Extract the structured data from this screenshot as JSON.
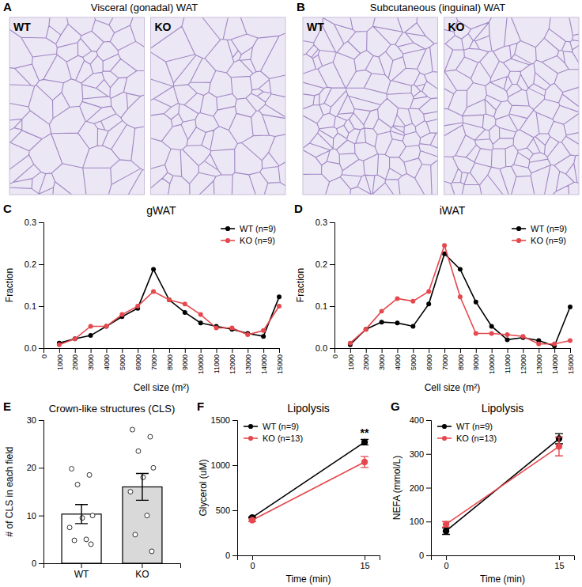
{
  "chart_data": [
    {
      "type": "image",
      "panel_label": "A",
      "title": "Visceral (gonadal) WAT",
      "annotations": [
        "WT",
        "KO"
      ]
    },
    {
      "type": "image",
      "panel_label": "B",
      "title": "Subcutaneous (inguinal) WAT",
      "annotations": [
        "WT",
        "KO"
      ]
    },
    {
      "type": "line",
      "panel_label": "C",
      "title": "gWAT",
      "xlabel": "Cell size (m²)",
      "ylabel": "Fraction",
      "x": [
        1000,
        2000,
        3000,
        4000,
        5000,
        6000,
        7000,
        8000,
        9000,
        10000,
        11000,
        12000,
        13000,
        14000,
        15000
      ],
      "xlim": [
        0,
        15000
      ],
      "xticks": [
        0,
        1000,
        2000,
        3000,
        4000,
        5000,
        6000,
        7000,
        8000,
        9000,
        10000,
        11000,
        12000,
        13000,
        14000,
        15000
      ],
      "ylim": [
        0,
        0.3
      ],
      "yticks": [
        {
          "value": 0,
          "label": "0.0"
        },
        {
          "value": 0.1,
          "label": "0.1"
        },
        {
          "value": 0.2,
          "label": "0.2"
        },
        {
          "value": 0.3,
          "label": "0.3"
        }
      ],
      "legend": "upper right",
      "series": [
        {
          "name": "WT (n=9)",
          "color": "#000000",
          "marker": "circle",
          "values": [
            0.012,
            0.022,
            0.03,
            0.052,
            0.075,
            0.095,
            0.188,
            0.115,
            0.085,
            0.06,
            0.052,
            0.045,
            0.035,
            0.028,
            0.122
          ]
        },
        {
          "name": "KO (n=9)",
          "color": "#e5484d",
          "marker": "circle",
          "values": [
            0.008,
            0.022,
            0.052,
            0.052,
            0.08,
            0.1,
            0.135,
            0.115,
            0.105,
            0.08,
            0.048,
            0.048,
            0.032,
            0.042,
            0.1
          ]
        }
      ]
    },
    {
      "type": "line",
      "panel_label": "D",
      "title": "iWAT",
      "xlabel": "Cell size (m²)",
      "ylabel": "Fraction",
      "x": [
        1000,
        2000,
        3000,
        4000,
        5000,
        6000,
        7000,
        8000,
        9000,
        10000,
        11000,
        12000,
        13000,
        14000,
        15000
      ],
      "xlim": [
        0,
        15000
      ],
      "xticks": [
        0,
        1000,
        2000,
        3000,
        4000,
        5000,
        6000,
        7000,
        8000,
        9000,
        10000,
        11000,
        12000,
        13000,
        14000,
        15000
      ],
      "ylim": [
        0,
        0.3
      ],
      "yticks": [
        {
          "value": 0,
          "label": "0.0"
        },
        {
          "value": 0.1,
          "label": "0.1"
        },
        {
          "value": 0.2,
          "label": "0.2"
        },
        {
          "value": 0.3,
          "label": "0.3"
        }
      ],
      "legend": "upper right",
      "series": [
        {
          "name": "WT (n=9)",
          "color": "#000000",
          "marker": "circle",
          "values": [
            0.008,
            0.045,
            0.062,
            0.06,
            0.052,
            0.105,
            0.225,
            0.188,
            0.11,
            0.052,
            0.02,
            0.025,
            0.018,
            0.005,
            0.098
          ]
        },
        {
          "name": "KO (n=9)",
          "color": "#e5484d",
          "marker": "circle",
          "values": [
            0.012,
            0.045,
            0.088,
            0.118,
            0.112,
            0.135,
            0.245,
            0.122,
            0.035,
            0.035,
            0.032,
            0.028,
            0.01,
            0.01,
            0.018
          ]
        }
      ]
    },
    {
      "type": "bar",
      "panel_label": "E",
      "title": "Crown-like structures (CLS)",
      "ylabel": "# of CLS in each field",
      "categories": [
        "WT",
        "KO"
      ],
      "values": [
        10.3,
        16.0
      ],
      "errors": [
        2.0,
        2.8
      ],
      "colors": [
        "#ffffff",
        "#d9d9d9"
      ],
      "points": [
        [
          19.8,
          18.5,
          16.5,
          10,
          9.5,
          7.5,
          5,
          4.8,
          4
        ],
        [
          28,
          26.5,
          23.5,
          20,
          18,
          15,
          10,
          6,
          2.5
        ]
      ],
      "ylim": [
        0,
        30
      ],
      "yticks": [
        0,
        10,
        20,
        30
      ]
    },
    {
      "type": "line",
      "panel_label": "F",
      "title": "Lipolysis",
      "xlabel": "Time (min)",
      "ylabel": "Glycerol (uM)",
      "x": [
        0,
        15
      ],
      "xlim": [
        -2,
        17
      ],
      "xticks": [
        0,
        15
      ],
      "ylim": [
        0,
        1500
      ],
      "yticks": [
        0,
        500,
        1000,
        1500
      ],
      "legend": "upper left",
      "annotations": [
        {
          "text": "**",
          "x": 15
        }
      ],
      "series": [
        {
          "name": "WT (n=9)",
          "color": "#000000",
          "marker": "circle",
          "values": [
            420,
            1255
          ],
          "errors": [
            5,
            30
          ]
        },
        {
          "name": "KO (n=13)",
          "color": "#e5484d",
          "marker": "circle",
          "values": [
            390,
            1035
          ],
          "errors": [
            15,
            60
          ]
        }
      ]
    },
    {
      "type": "line",
      "panel_label": "G",
      "title": "Lipolysis",
      "xlabel": "Time (min)",
      "ylabel": "NEFA (mmol/L)",
      "x": [
        0,
        15
      ],
      "xlim": [
        -2,
        17
      ],
      "xticks": [
        0,
        15
      ],
      "ylim": [
        0,
        400
      ],
      "yticks": [
        0,
        100,
        200,
        300,
        400
      ],
      "legend": "upper left",
      "series": [
        {
          "name": "WT (n=9)",
          "color": "#000000",
          "marker": "circle",
          "values": [
            72,
            345
          ],
          "errors": [
            10,
            15
          ]
        },
        {
          "name": "KO (n=13)",
          "color": "#e5484d",
          "marker": "circle",
          "values": [
            92,
            322
          ],
          "errors": [
            8,
            28
          ]
        }
      ]
    }
  ]
}
